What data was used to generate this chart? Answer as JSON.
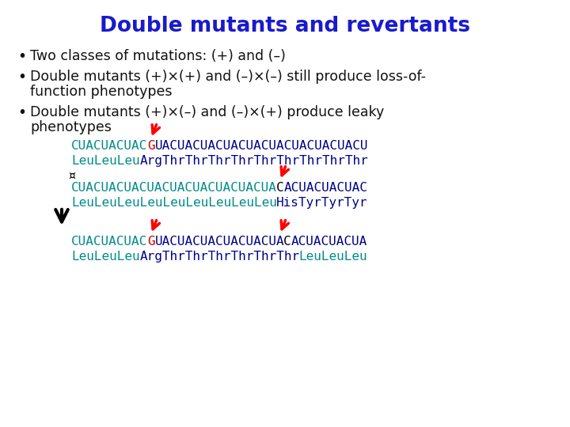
{
  "title": "Double mutants and revertants",
  "title_color": "#1a1acc",
  "title_fontsize": 19,
  "bg_color": "#ffffff",
  "bullet_fontsize": 12.5,
  "bullet_color": "#111111",
  "seq_fontsize": 11.5,
  "teal": "#008B8B",
  "dark_blue": "#00008B",
  "red_mut": "#cc0000",
  "black": "#000000",
  "bullet1": "Two classes of mutations: (+) and (–)",
  "bullet2_line1": "Double mutants (+)×(+) and (–)×(–) still produce loss-of-",
  "bullet2_line2": "function phenotypes",
  "bullet3_line1": "Double mutants (+)×(–) and (–)×(+) produce leaky",
  "bullet3_line2": "phenotypes",
  "seq1_rna1_teal": "CUACUACUAC",
  "seq1_rna1_red": "G",
  "seq1_rna1_blue": "UACUACUACUACUACUACUACUACUACU",
  "seq1_aa1_teal": "LeuLeuLeu",
  "seq1_aa1_blue": "ArgThrThrThrThrThrThrThrThrThr",
  "seq2_rna1_teal": "CUACUACUACUACUACUACUACUACUA",
  "seq2_rna1_black": "C",
  "seq2_rna1_blue": "ACUACUACUAC",
  "seq2_aa1_teal": "LeuLeuLeuLeuLeuLeuLeuLeuLeu",
  "seq2_aa1_blue": "HisTyrTyrTyr",
  "seq3_rna1_teal": "CUACUACUAC",
  "seq3_rna1_red": "G",
  "seq3_rna1_blue": "UACUACUACUACUACUA",
  "seq3_rna1_black": "C",
  "seq3_rna1_blue2": "ACUACUACUA",
  "seq3_aa1_teal": "LeuLeuLeu",
  "seq3_aa1_blue": "ArgThrThrThrThrThrThr",
  "seq3_aa1_teal2": "LeuLeuLeu"
}
